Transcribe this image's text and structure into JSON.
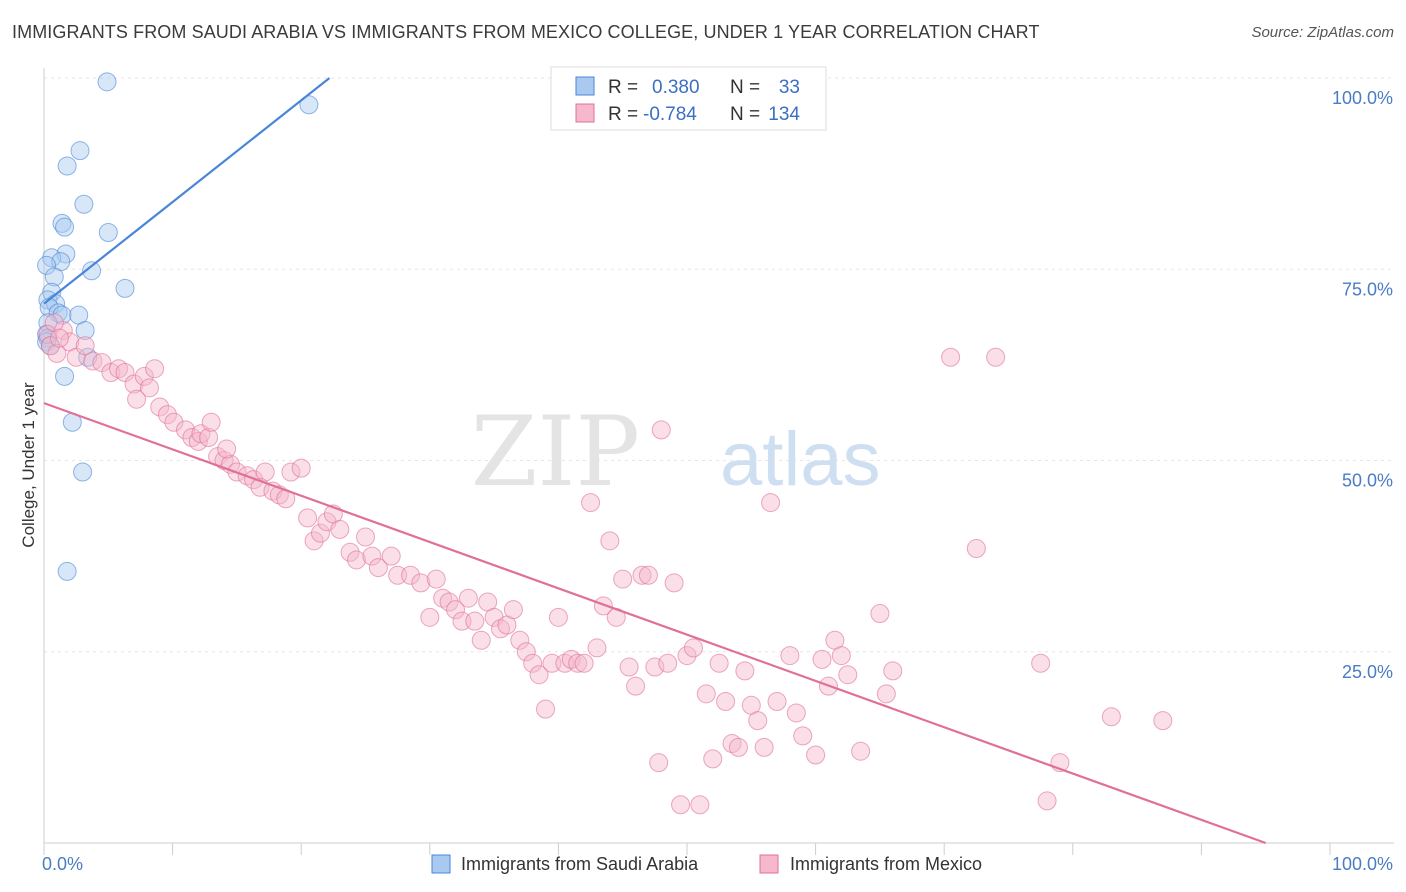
{
  "title": "IMMIGRANTS FROM SAUDI ARABIA VS IMMIGRANTS FROM MEXICO COLLEGE, UNDER 1 YEAR CORRELATION CHART",
  "source": "Source: ZipAtlas.com",
  "watermark": {
    "zip": "ZIP",
    "atlas": "atlas"
  },
  "colors": {
    "saudi": "#4a86d8",
    "saudi_fill": "#a9c9f0",
    "mexico": "#e07098",
    "mexico_fill": "#f5b8cc",
    "axis_label": "#4a7cc4"
  },
  "legend": {
    "r_label": "R =",
    "n_label": "N =",
    "saudi": {
      "r": "0.380",
      "n": "33"
    },
    "mexico": {
      "r": "-0.784",
      "n": "134"
    }
  },
  "chart_data": {
    "type": "scatter",
    "title": "IMMIGRANTS FROM SAUDI ARABIA VS IMMIGRANTS FROM MEXICO COLLEGE, UNDER 1 YEAR CORRELATION CHART",
    "xlabel": "",
    "ylabel": "College, Under 1 year",
    "xlim": [
      0,
      100
    ],
    "ylim": [
      0,
      100
    ],
    "x_tick_labels": [
      "0.0%",
      "100.0%"
    ],
    "y_tick_labels": [
      "25.0%",
      "50.0%",
      "75.0%",
      "100.0%"
    ],
    "y_ticks": [
      25,
      50,
      75,
      100
    ],
    "grid": true,
    "legend_position": "top-center",
    "series": [
      {
        "name": "Immigrants from Saudi Arabia",
        "color": "#4a86d8",
        "trend": {
          "x1": 0,
          "y1": 70.5,
          "x2": 22.2,
          "y2": 100
        },
        "points": [
          [
            4.9,
            99.5
          ],
          [
            20.6,
            96.5
          ],
          [
            2.8,
            90.5
          ],
          [
            1.8,
            88.5
          ],
          [
            3.1,
            83.5
          ],
          [
            1.4,
            81.0
          ],
          [
            1.6,
            80.5
          ],
          [
            5.0,
            79.8
          ],
          [
            1.7,
            77.0
          ],
          [
            0.6,
            76.5
          ],
          [
            1.3,
            76.0
          ],
          [
            0.2,
            75.5
          ],
          [
            3.7,
            74.8
          ],
          [
            0.8,
            74.0
          ],
          [
            6.3,
            72.5
          ],
          [
            0.6,
            72.0
          ],
          [
            0.3,
            71.0
          ],
          [
            0.9,
            70.5
          ],
          [
            0.4,
            70.0
          ],
          [
            1.1,
            69.3
          ],
          [
            1.4,
            69.0
          ],
          [
            2.7,
            69.0
          ],
          [
            0.3,
            68.0
          ],
          [
            3.2,
            67.0
          ],
          [
            0.2,
            66.5
          ],
          [
            0.3,
            66.0
          ],
          [
            0.2,
            65.5
          ],
          [
            0.5,
            65.0
          ],
          [
            3.4,
            63.5
          ],
          [
            1.6,
            61.0
          ],
          [
            2.2,
            55.0
          ],
          [
            3.0,
            48.5
          ],
          [
            1.8,
            35.5
          ]
        ]
      },
      {
        "name": "Immigrants from Mexico",
        "color": "#e07098",
        "trend": {
          "x1": 0,
          "y1": 57.5,
          "x2": 95.0,
          "y2": 0
        },
        "points": [
          [
            0.3,
            66.5
          ],
          [
            0.5,
            65.0
          ],
          [
            1.0,
            64.0
          ],
          [
            1.5,
            67.0
          ],
          [
            2.0,
            65.5
          ],
          [
            2.5,
            63.5
          ],
          [
            3.2,
            65.0
          ],
          [
            3.8,
            63.0
          ],
          [
            4.5,
            62.8
          ],
          [
            5.2,
            61.5
          ],
          [
            5.8,
            62.0
          ],
          [
            6.3,
            61.5
          ],
          [
            7.0,
            60.0
          ],
          [
            7.8,
            61.0
          ],
          [
            8.2,
            59.5
          ],
          [
            8.6,
            62.0
          ],
          [
            7.2,
            58.0
          ],
          [
            9.0,
            57.0
          ],
          [
            9.6,
            56.0
          ],
          [
            10.1,
            55.0
          ],
          [
            11.0,
            54.0
          ],
          [
            11.5,
            53.0
          ],
          [
            12.0,
            52.5
          ],
          [
            12.2,
            53.5
          ],
          [
            12.8,
            53.0
          ],
          [
            13.5,
            50.5
          ],
          [
            14.0,
            50.0
          ],
          [
            14.5,
            49.5
          ],
          [
            13.0,
            55.0
          ],
          [
            14.2,
            51.5
          ],
          [
            15.0,
            48.5
          ],
          [
            15.8,
            48.0
          ],
          [
            16.3,
            47.5
          ],
          [
            17.2,
            48.5
          ],
          [
            16.8,
            46.5
          ],
          [
            17.8,
            46.0
          ],
          [
            18.3,
            45.5
          ],
          [
            18.8,
            45.0
          ],
          [
            19.2,
            48.5
          ],
          [
            20.0,
            49.0
          ],
          [
            20.5,
            42.5
          ],
          [
            21.0,
            39.5
          ],
          [
            21.5,
            40.5
          ],
          [
            22.0,
            42.0
          ],
          [
            22.5,
            43.0
          ],
          [
            23.0,
            41.0
          ],
          [
            23.8,
            38.0
          ],
          [
            24.3,
            37.0
          ],
          [
            25.0,
            40.0
          ],
          [
            25.5,
            37.5
          ],
          [
            26.0,
            36.0
          ],
          [
            27.0,
            37.5
          ],
          [
            27.5,
            35.0
          ],
          [
            28.5,
            35.0
          ],
          [
            29.3,
            34.0
          ],
          [
            30.0,
            29.5
          ],
          [
            30.5,
            34.5
          ],
          [
            31.0,
            32.0
          ],
          [
            31.5,
            31.5
          ],
          [
            32.0,
            30.5
          ],
          [
            32.5,
            29.0
          ],
          [
            33.0,
            32.0
          ],
          [
            33.5,
            29.0
          ],
          [
            34.0,
            26.5
          ],
          [
            34.5,
            31.5
          ],
          [
            35.0,
            29.5
          ],
          [
            35.5,
            28.0
          ],
          [
            36.0,
            28.5
          ],
          [
            36.5,
            30.5
          ],
          [
            37.0,
            26.5
          ],
          [
            37.5,
            25.0
          ],
          [
            38.0,
            23.5
          ],
          [
            38.5,
            22.0
          ],
          [
            39.0,
            17.5
          ],
          [
            39.5,
            23.5
          ],
          [
            40.0,
            29.5
          ],
          [
            40.5,
            23.5
          ],
          [
            41.0,
            24.0
          ],
          [
            41.5,
            23.5
          ],
          [
            42.0,
            23.5
          ],
          [
            42.5,
            44.5
          ],
          [
            43.0,
            25.5
          ],
          [
            43.5,
            31.0
          ],
          [
            44.0,
            39.5
          ],
          [
            44.5,
            29.5
          ],
          [
            45.0,
            34.5
          ],
          [
            45.5,
            23.0
          ],
          [
            46.0,
            20.5
          ],
          [
            46.5,
            35.0
          ],
          [
            47.0,
            35.0
          ],
          [
            47.5,
            23.0
          ],
          [
            47.8,
            10.5
          ],
          [
            48.0,
            54.0
          ],
          [
            48.5,
            23.5
          ],
          [
            49.0,
            34.0
          ],
          [
            49.5,
            5.0
          ],
          [
            50.0,
            24.5
          ],
          [
            50.5,
            25.5
          ],
          [
            51.0,
            5.0
          ],
          [
            51.5,
            19.5
          ],
          [
            52.0,
            11.0
          ],
          [
            52.5,
            23.5
          ],
          [
            53.0,
            18.5
          ],
          [
            53.5,
            13.0
          ],
          [
            54.0,
            12.5
          ],
          [
            54.5,
            22.5
          ],
          [
            55.0,
            18.0
          ],
          [
            55.5,
            16.0
          ],
          [
            56.0,
            12.5
          ],
          [
            56.5,
            44.5
          ],
          [
            57.0,
            18.5
          ],
          [
            58.0,
            24.5
          ],
          [
            58.5,
            17.0
          ],
          [
            59.0,
            14.0
          ],
          [
            60.0,
            11.5
          ],
          [
            60.5,
            24.0
          ],
          [
            61.0,
            20.5
          ],
          [
            61.5,
            26.5
          ],
          [
            62.0,
            24.5
          ],
          [
            62.5,
            22.0
          ],
          [
            63.5,
            12.0
          ],
          [
            65.0,
            30.0
          ],
          [
            65.5,
            19.5
          ],
          [
            66.0,
            22.5
          ],
          [
            70.5,
            63.5
          ],
          [
            72.5,
            38.5
          ],
          [
            74.0,
            63.5
          ],
          [
            77.5,
            23.5
          ],
          [
            78.0,
            5.5
          ],
          [
            79.0,
            10.5
          ],
          [
            83.0,
            16.5
          ],
          [
            87.0,
            16.0
          ],
          [
            0.8,
            68.0
          ],
          [
            1.2,
            66.0
          ]
        ]
      }
    ]
  },
  "bottom_legend": {
    "saudi": "Immigrants from Saudi Arabia",
    "mexico": "Immigrants from Mexico"
  }
}
